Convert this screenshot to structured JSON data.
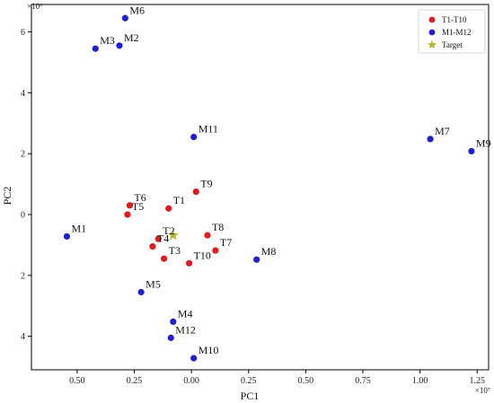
{
  "chart_data": {
    "type": "scatter",
    "title": "",
    "xlabel": "PC1",
    "ylabel": "PC2",
    "x_exponent_label": "×10⁷",
    "y_exponent_label": "×10⁶",
    "xlim": [
      -0.7,
      1.3
    ],
    "ylim": [
      -5.1,
      6.9
    ],
    "x_ticks": [
      {
        "value": -0.5,
        "label": "0.50"
      },
      {
        "value": -0.25,
        "label": "0.25"
      },
      {
        "value": 0.0,
        "label": "0.00"
      },
      {
        "value": 0.25,
        "label": "0.25"
      },
      {
        "value": 0.5,
        "label": "0.50"
      },
      {
        "value": 0.75,
        "label": "0.75"
      },
      {
        "value": 1.0,
        "label": "1.00"
      },
      {
        "value": 1.25,
        "label": "1.25"
      }
    ],
    "y_ticks": [
      {
        "value": -4,
        "label": "4"
      },
      {
        "value": -2,
        "label": "2"
      },
      {
        "value": 0,
        "label": "0"
      },
      {
        "value": 2,
        "label": "2"
      },
      {
        "value": 4,
        "label": "4"
      },
      {
        "value": 6,
        "label": "6"
      }
    ],
    "grid": false,
    "legend_position": "top-right",
    "series": [
      {
        "name": "T1-T10",
        "color": "#e41a1c",
        "marker": "circle",
        "points": [
          {
            "label": "T1",
            "x": -0.1,
            "y": 0.2
          },
          {
            "label": "T2",
            "x": -0.145,
            "y": -0.8
          },
          {
            "label": "T3",
            "x": -0.12,
            "y": -1.45
          },
          {
            "label": "T4",
            "x": -0.17,
            "y": -1.05
          },
          {
            "label": "T5",
            "x": -0.28,
            "y": 0.0
          },
          {
            "label": "T6",
            "x": -0.27,
            "y": 0.3
          },
          {
            "label": "T7",
            "x": 0.105,
            "y": -1.18
          },
          {
            "label": "T8",
            "x": 0.07,
            "y": -0.68
          },
          {
            "label": "T9",
            "x": 0.02,
            "y": 0.75
          },
          {
            "label": "T10",
            "x": -0.01,
            "y": -1.6
          }
        ]
      },
      {
        "name": "M1-M12",
        "color": "#1f1fd6",
        "marker": "circle",
        "points": [
          {
            "label": "M1",
            "x": -0.545,
            "y": -0.72
          },
          {
            "label": "M2",
            "x": -0.315,
            "y": 5.55
          },
          {
            "label": "M3",
            "x": -0.42,
            "y": 5.45
          },
          {
            "label": "M4",
            "x": -0.08,
            "y": -3.52
          },
          {
            "label": "M5",
            "x": -0.22,
            "y": -2.55
          },
          {
            "label": "M6",
            "x": -0.29,
            "y": 6.45
          },
          {
            "label": "M7",
            "x": 1.045,
            "y": 2.48
          },
          {
            "label": "M8",
            "x": 0.285,
            "y": -1.48
          },
          {
            "label": "M9",
            "x": 1.225,
            "y": 2.08
          },
          {
            "label": "M10",
            "x": 0.01,
            "y": -4.72
          },
          {
            "label": "M11",
            "x": 0.01,
            "y": 2.55
          },
          {
            "label": "M12",
            "x": -0.09,
            "y": -4.05
          }
        ]
      },
      {
        "name": "Target",
        "color": "#b5b82a",
        "marker": "star",
        "points": [
          {
            "label": "",
            "x": -0.08,
            "y": -0.68
          }
        ]
      }
    ]
  }
}
